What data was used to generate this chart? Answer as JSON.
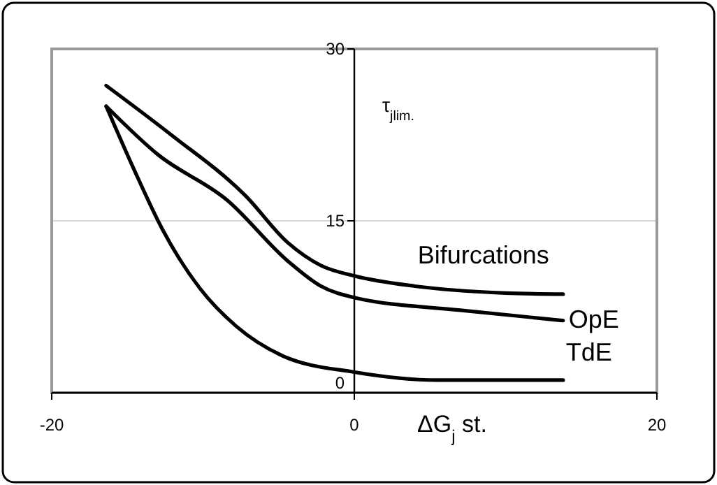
{
  "chart_data": {
    "type": "line",
    "xlabel": "ΔG$_{j}$ st.",
    "ylabel": "τ$_{jlim.}$",
    "xlim": [
      -20,
      20
    ],
    "xticks": [
      -20,
      0,
      20
    ],
    "ylim": [
      0,
      30
    ],
    "yticks": [
      0,
      15,
      30
    ],
    "grid": "y",
    "marker": "none",
    "line_style": "solid",
    "series": [
      {
        "name": "Bifurcations",
        "color": "#000000",
        "x": [
          -16.4,
          -12.1,
          -7.2,
          -4.4,
          -2.2,
          0,
          4,
          10,
          13.8
        ],
        "values": [
          26.8,
          22.5,
          17.2,
          13.1,
          11.1,
          10.2,
          9.3,
          8.7,
          8.6
        ]
      },
      {
        "name": "OpE",
        "color": "#000000",
        "x": [
          -16.4,
          -13,
          -8.4,
          -4.4,
          -2.2,
          0,
          7,
          13.8
        ],
        "values": [
          25,
          20.8,
          16.8,
          11.5,
          9.3,
          8.3,
          7.2,
          6.3
        ]
      },
      {
        "name": "TdE",
        "color": "#000000",
        "x": [
          -16.4,
          -14.6,
          -12.7,
          -10.2,
          -7.8,
          -4.7,
          0,
          5.5,
          13.8
        ],
        "values": [
          25,
          19.6,
          14.3,
          9.1,
          5.8,
          3.2,
          1.8,
          1.1,
          1.1
        ]
      }
    ]
  }
}
